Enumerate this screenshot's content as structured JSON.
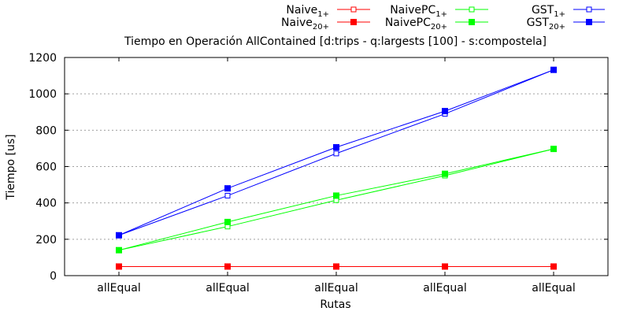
{
  "chart_data": {
    "type": "line",
    "title": "Tiempo en Operación AllContained [d:trips - q:largests [100] - s:compostela]",
    "xlabel": "Rutas",
    "ylabel": "Tiempo [us]",
    "categories": [
      "allEqual",
      "allEqual",
      "allEqual",
      "allEqual",
      "allEqual"
    ],
    "ylim": [
      0,
      1200
    ],
    "yticks": [
      0,
      200,
      400,
      600,
      800,
      1000,
      1200
    ],
    "grid": true,
    "legend_position": "top-right",
    "series": [
      {
        "name": "Naive",
        "sub": "1+",
        "color": "#ff0000",
        "marker": "open-square",
        "values": [
          50,
          50,
          50,
          50,
          50
        ]
      },
      {
        "name": "Naive",
        "sub": "20+",
        "color": "#ff0000",
        "marker": "filled-square",
        "values": [
          50,
          50,
          50,
          50,
          50
        ]
      },
      {
        "name": "NaivePC",
        "sub": "1+",
        "color": "#00ff00",
        "marker": "open-square",
        "values": [
          140,
          270,
          415,
          550,
          697
        ]
      },
      {
        "name": "NaivePC",
        "sub": "20+",
        "color": "#00ff00",
        "marker": "filled-square",
        "values": [
          140,
          295,
          440,
          560,
          697
        ]
      },
      {
        "name": "GST",
        "sub": "1+",
        "color": "#0000ff",
        "marker": "open-square",
        "values": [
          222,
          440,
          672,
          890,
          1132
        ]
      },
      {
        "name": "GST",
        "sub": "20+",
        "color": "#0000ff",
        "marker": "filled-square",
        "values": [
          222,
          480,
          706,
          905,
          1132
        ]
      }
    ]
  }
}
